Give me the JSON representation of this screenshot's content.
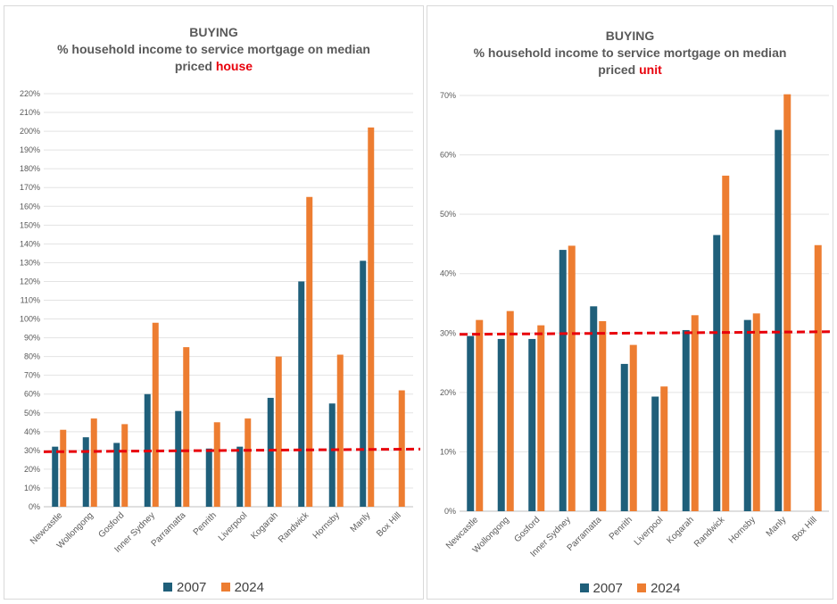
{
  "chart_data": [
    {
      "type": "bar",
      "title": {
        "line1": "BUYING",
        "line2": "% household income to service mortgage on median",
        "line3_prefix": "priced ",
        "line3_accent": "house"
      },
      "categories": [
        "Newcastle",
        "Wollongong",
        "Gosford",
        "Inner Sydney",
        "Parramatta",
        "Penrith",
        "Liverpool",
        "Kogarah",
        "Randwick",
        "Hornsby",
        "Manly",
        "Box Hill"
      ],
      "series": [
        {
          "name": "2007",
          "color": "#1f5f7a",
          "values": [
            32,
            37,
            34,
            60,
            51,
            31,
            32,
            58,
            120,
            55,
            131,
            null
          ]
        },
        {
          "name": "2024",
          "color": "#ed7d31",
          "values": [
            41,
            47,
            44,
            98,
            85,
            45,
            47,
            80,
            165,
            81,
            202,
            62
          ]
        }
      ],
      "ylim": [
        0,
        220
      ],
      "yticks": [
        "0%",
        "10%",
        "20%",
        "30%",
        "40%",
        "50%",
        "60%",
        "70%",
        "80%",
        "90%",
        "100%",
        "110%",
        "120%",
        "130%",
        "140%",
        "150%",
        "160%",
        "170%",
        "180%",
        "190%",
        "200%",
        "210%",
        "220%"
      ],
      "threshold": {
        "value": 30,
        "color": "#e8000b",
        "style": "dashed"
      },
      "grid": true,
      "legend_position": "bottom"
    },
    {
      "type": "bar",
      "title": {
        "line1": "BUYING",
        "line2": "% household income to service mortgage on median",
        "line3_prefix": "priced ",
        "line3_accent": "unit"
      },
      "categories": [
        "Newcastle",
        "Wollongong",
        "Gosford",
        "Inner Sydney",
        "Parramatta",
        "Penrith",
        "Liverpool",
        "Kogarah",
        "Randwick",
        "Hornsby",
        "Manly",
        "Box Hill"
      ],
      "series": [
        {
          "name": "2007",
          "color": "#1f5f7a",
          "values": [
            29.5,
            29,
            29,
            44,
            34.5,
            24.8,
            19.3,
            30.5,
            46.5,
            32.2,
            64.2,
            null
          ]
        },
        {
          "name": "2024",
          "color": "#ed7d31",
          "values": [
            32.2,
            33.7,
            31.3,
            44.7,
            32,
            28,
            21,
            33,
            56.5,
            33.3,
            70.2,
            44.8
          ]
        }
      ],
      "ylim": [
        0,
        70
      ],
      "yticks": [
        "0%",
        "10%",
        "20%",
        "30%",
        "40%",
        "50%",
        "60%",
        "70%"
      ],
      "threshold": {
        "value": 30,
        "color": "#e8000b",
        "style": "dashed"
      },
      "grid": true,
      "legend_position": "bottom"
    }
  ]
}
